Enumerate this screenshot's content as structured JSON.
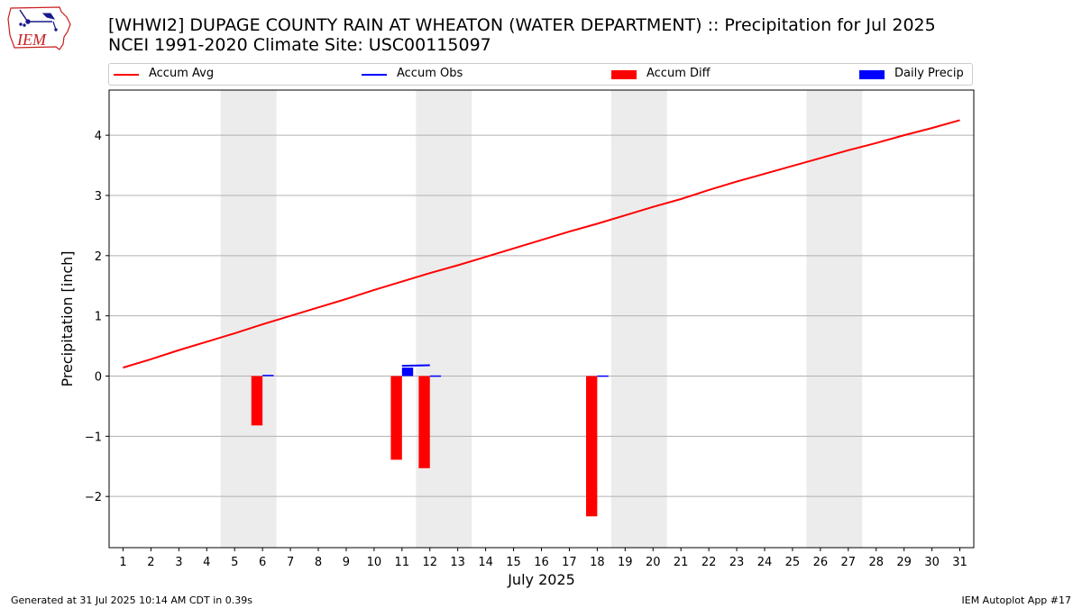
{
  "header": {
    "title_line1": "[WHWI2] DUPAGE COUNTY RAIN AT WHEATON (WATER DEPARTMENT) :: Precipitation for Jul 2025",
    "title_line2": "NCEI 1991-2020 Climate Site: USC00115097",
    "logo_text": "IEM"
  },
  "footer": {
    "generated": "Generated at 31 Jul 2025 10:14 AM CDT in 0.39s",
    "app": "IEM Autoplot App #17"
  },
  "chart_data": {
    "type": "bar",
    "xlabel": "July 2025",
    "ylabel": "Precipitation [inch]",
    "xlim": [
      0.5,
      31.5
    ],
    "ylim": [
      -2.85,
      4.75
    ],
    "yticks": [
      -2,
      -1,
      0,
      1,
      2,
      3,
      4
    ],
    "ytick_labels": [
      "−2",
      "−1",
      "0",
      "1",
      "2",
      "3",
      "4"
    ],
    "days": [
      1,
      2,
      3,
      4,
      5,
      6,
      7,
      8,
      9,
      10,
      11,
      12,
      13,
      14,
      15,
      16,
      17,
      18,
      19,
      20,
      21,
      22,
      23,
      24,
      25,
      26,
      27,
      28,
      29,
      30,
      31
    ],
    "grid": "horizontal",
    "weekend_shading": [
      [
        5,
        6
      ],
      [
        12,
        13
      ],
      [
        19,
        20
      ],
      [
        26,
        27
      ]
    ],
    "legend": {
      "placement": "top",
      "entries": [
        {
          "label": "Accum Avg",
          "kind": "line",
          "color": "#ff0000"
        },
        {
          "label": "Accum Obs",
          "kind": "line",
          "color": "#0000ff"
        },
        {
          "label": "Accum Diff",
          "kind": "box",
          "color": "#ff0000"
        },
        {
          "label": "Daily Precip",
          "kind": "box",
          "color": "#0000ff"
        }
      ]
    },
    "series": [
      {
        "name": "Accum Avg",
        "color": "#ff0000",
        "values": [
          0.14,
          0.28,
          0.43,
          0.57,
          0.71,
          0.86,
          1.0,
          1.14,
          1.28,
          1.43,
          1.57,
          1.71,
          1.84,
          1.98,
          2.12,
          2.26,
          2.4,
          2.53,
          2.67,
          2.81,
          2.94,
          3.09,
          3.23,
          3.36,
          3.49,
          3.62,
          3.75,
          3.87,
          4.0,
          4.12,
          4.25
        ]
      },
      {
        "name": "Accum Obs",
        "color": "#0000ff",
        "points": [
          [
            11,
            0.17
          ],
          [
            12,
            0.18
          ]
        ]
      },
      {
        "name": "Accum Diff",
        "color": "#ff0000",
        "bars": [
          [
            6,
            -0.82
          ],
          [
            11,
            -1.39
          ],
          [
            12,
            -1.53
          ],
          [
            18,
            -2.33
          ]
        ]
      },
      {
        "name": "Daily Precip",
        "color": "#0000ff",
        "bars": [
          [
            6,
            0.02
          ],
          [
            11,
            0.14
          ],
          [
            12,
            0.01
          ],
          [
            18,
            0.01
          ]
        ]
      }
    ]
  }
}
